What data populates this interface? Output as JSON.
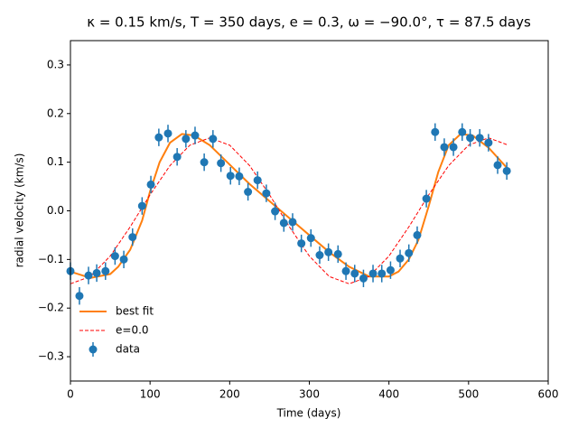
{
  "chart_data": {
    "type": "line",
    "title": "κ = 0.15 km/s, T = 350 days, e = 0.3, ω = −90.0°, τ = 87.5 days",
    "x_label": "Time (days)",
    "y_label": "radial velocity (km/s)",
    "xlim": [
      0,
      600
    ],
    "xticks": [
      0,
      100,
      200,
      300,
      400,
      500,
      600
    ],
    "ylim": [
      -0.35,
      0.35
    ],
    "yticks": [
      {
        "value": -0.3,
        "label": "−0.3"
      },
      {
        "value": -0.2,
        "label": "−0.2"
      },
      {
        "value": -0.1,
        "label": "−0.1"
      },
      {
        "value": 0,
        "label": "0.0"
      },
      0.1,
      0.2,
      0.3
    ],
    "legend": "lower left",
    "series": [
      {
        "name": "best fit",
        "type": "line",
        "color": "#ff7f0e",
        "linestyle": "solid",
        "x": [
          0,
          25,
          50,
          60,
          75,
          90,
          100,
          112,
          125,
          140,
          155,
          175,
          200,
          225,
          250,
          275,
          300,
          325,
          350,
          375,
          400,
          412,
          425,
          437,
          450,
          462,
          475,
          490,
          505,
          525,
          550
        ],
        "values": [
          -0.125,
          -0.138,
          -0.13,
          -0.115,
          -0.08,
          -0.02,
          0.04,
          0.1,
          0.14,
          0.158,
          0.155,
          0.135,
          0.095,
          0.055,
          0.02,
          -0.015,
          -0.05,
          -0.085,
          -0.115,
          -0.135,
          -0.135,
          -0.125,
          -0.1,
          -0.06,
          0.01,
          0.08,
          0.135,
          0.158,
          0.155,
          0.13,
          0.085
        ]
      },
      {
        "name": "e=0.0",
        "type": "line",
        "color": "#ff0000",
        "linestyle": "dashed",
        "x": [
          0,
          25,
          50,
          75,
          100,
          125,
          150,
          175,
          200,
          225,
          250,
          275,
          300,
          325,
          350,
          375,
          400,
          425,
          450,
          475,
          500,
          525,
          550
        ],
        "values": [
          -0.15,
          -0.135,
          -0.093,
          -0.033,
          0.033,
          0.093,
          0.135,
          0.15,
          0.135,
          0.093,
          0.033,
          -0.033,
          -0.093,
          -0.135,
          -0.15,
          -0.135,
          -0.093,
          -0.033,
          0.033,
          0.093,
          0.135,
          0.15,
          0.135
        ]
      },
      {
        "name": "data",
        "type": "errorbar",
        "color": "#1f77b4",
        "yerr": 0.018,
        "x": [
          0,
          11.3,
          22.7,
          33,
          44,
          56,
          67,
          78,
          90,
          101,
          111,
          122.5,
          134,
          145,
          156.5,
          168,
          179,
          189,
          201,
          212,
          223,
          235,
          246,
          257,
          268,
          279,
          290,
          302,
          313,
          324,
          336,
          346,
          357,
          368,
          380,
          391,
          402,
          414,
          425,
          435.5,
          447,
          458,
          469.5,
          481,
          492,
          502,
          514,
          525,
          536.5,
          548
        ],
        "values": [
          -0.124,
          -0.175,
          -0.133,
          -0.128,
          -0.124,
          -0.093,
          -0.1,
          -0.054,
          0.01,
          0.054,
          0.151,
          0.159,
          0.111,
          0.148,
          0.155,
          0.1,
          0.148,
          0.098,
          0.072,
          0.071,
          0.039,
          0.063,
          0.036,
          -0.001,
          -0.025,
          -0.023,
          -0.067,
          -0.056,
          -0.091,
          -0.085,
          -0.089,
          -0.124,
          -0.129,
          -0.139,
          -0.129,
          -0.129,
          -0.122,
          -0.098,
          -0.087,
          -0.05,
          0.025,
          0.162,
          0.131,
          0.131,
          0.162,
          0.15,
          0.15,
          0.14,
          0.094,
          0.082
        ]
      }
    ]
  }
}
